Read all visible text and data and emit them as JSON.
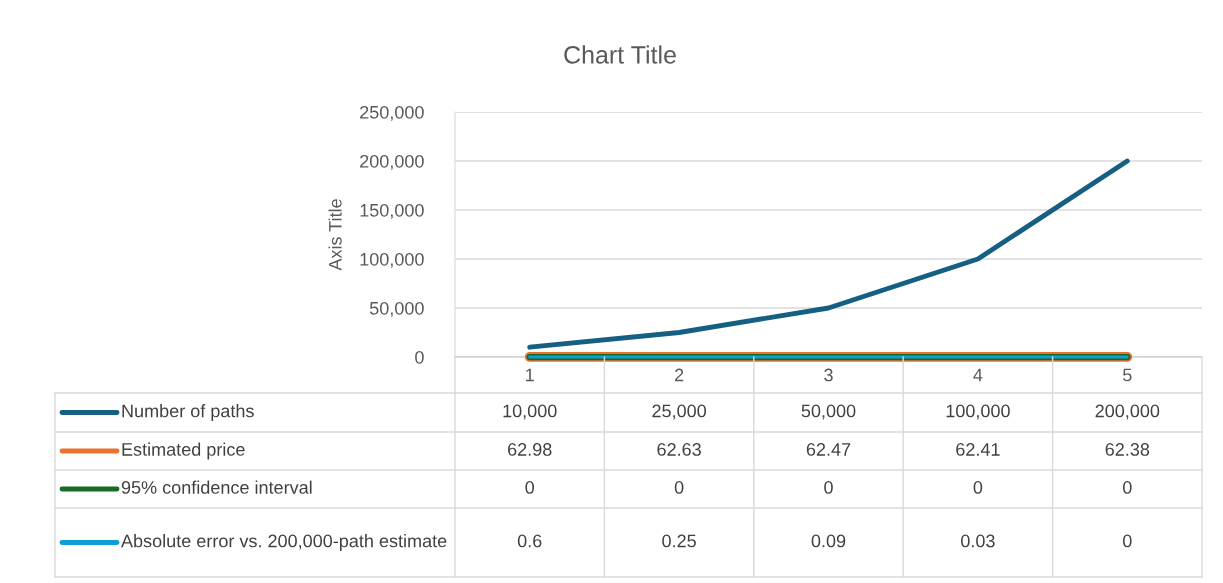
{
  "chart_data": {
    "type": "line",
    "title": "Chart Title",
    "ylabel": "Axis Title",
    "categories": [
      "1",
      "2",
      "3",
      "4",
      "5"
    ],
    "series": [
      {
        "name": "Number of paths",
        "color": "#156082",
        "values": [
          10000,
          25000,
          50000,
          100000,
          200000
        ],
        "value_labels": [
          "10,000",
          "25,000",
          "50,000",
          "100,000",
          "200,000"
        ]
      },
      {
        "name": "Estimated price",
        "color": "#e97132",
        "values": [
          62.98,
          62.63,
          62.47,
          62.41,
          62.38
        ],
        "value_labels": [
          "62.98",
          "62.63",
          "62.47",
          "62.41",
          "62.38"
        ]
      },
      {
        "name": "95% confidence interval",
        "color": "#196b24",
        "values": [
          0,
          0,
          0,
          0,
          0
        ],
        "value_labels": [
          "0",
          "0",
          "0",
          "0",
          "0"
        ]
      },
      {
        "name": "Absolute error vs. 200,000-path estimate",
        "color": "#0f9ed5",
        "values": [
          0.6,
          0.25,
          0.09,
          0.03,
          0
        ],
        "value_labels": [
          "0.6",
          "0.25",
          "0.09",
          "0.03",
          "0"
        ]
      }
    ],
    "ylim": [
      0,
      250000
    ],
    "yticks": [
      {
        "value": 0,
        "label": "0"
      },
      {
        "value": 50000,
        "label": "50,000"
      },
      {
        "value": 100000,
        "label": "100,000"
      },
      {
        "value": 150000,
        "label": "150,000"
      },
      {
        "value": 200000,
        "label": "200,000"
      },
      {
        "value": 250000,
        "label": "250,000"
      }
    ],
    "grid": "y",
    "legend": "bottom left",
    "marker": "none",
    "line_style": "solid"
  }
}
